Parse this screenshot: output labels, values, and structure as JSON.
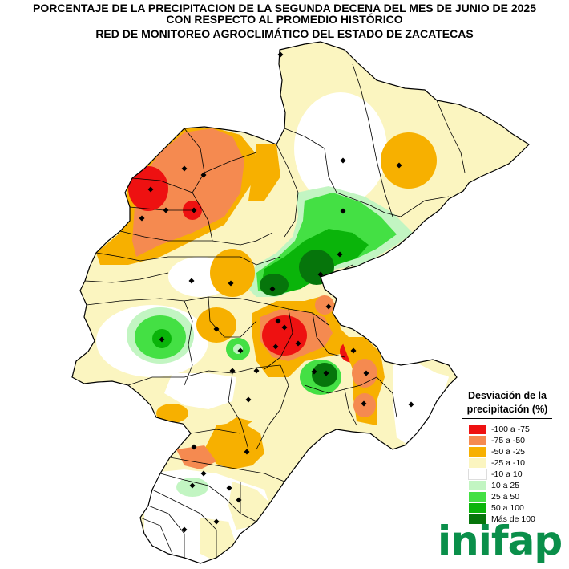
{
  "title": {
    "line1": "PORCENTAJE DE LA PRECIPITACION DE LA SEGUNDA DECENA DEL MES DE JUNIO DE 2025",
    "line2": "CON RESPECTO AL PROMEDIO HISTÓRICO",
    "line3": "RED DE MONITOREO AGROCLIMÁTICO DEL ESTADO DE ZACATECAS"
  },
  "legend": {
    "title_line1": "Desviación de la",
    "title_line2": "precipitación (%)",
    "items": [
      {
        "label": "-100 a -75",
        "color": "#ee1111"
      },
      {
        "label": "-75 a -50",
        "color": "#f58a50"
      },
      {
        "label": "-50 a -25",
        "color": "#f7b000"
      },
      {
        "label": "-25 a -10",
        "color": "#fbf5c0"
      },
      {
        "label": "-10 a 10",
        "color": "#ffffff"
      },
      {
        "label": "10 a 25",
        "color": "#c2f5c2"
      },
      {
        "label": "25 a 50",
        "color": "#44e044"
      },
      {
        "label": "50 a 100",
        "color": "#0ab40a"
      },
      {
        "label": "Más de 100",
        "color": "#06750b"
      }
    ]
  },
  "logo": {
    "text": "inifap"
  },
  "map": {
    "base_color": "#fbf5c0",
    "border_color": "#000000",
    "station_marker": "diamond",
    "stations_count": 40
  }
}
